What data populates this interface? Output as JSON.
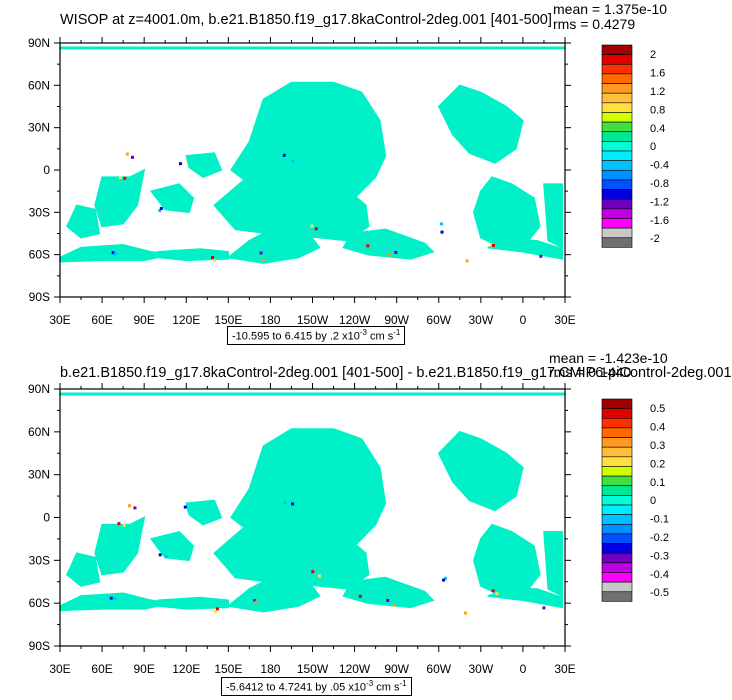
{
  "panels": [
    {
      "title": "WISOP at z=4001.0m, b.e21.B1850.f19_g17.8kaControl-2deg.001 [401-500]",
      "mean": "mean = 1.375e-10",
      "rms": "rms = 0.4279",
      "info_text": "-10.595 to 6.415 by .2 x10",
      "info_exp": "-3",
      "info_units": " cm s",
      "info_exp2": "-1",
      "lat_labels": [
        "90N",
        "60N",
        "30N",
        "0",
        "30S",
        "60S",
        "90S"
      ],
      "lon_labels": [
        "30E",
        "60E",
        "90E",
        "120E",
        "150E",
        "180",
        "150W",
        "120W",
        "90W",
        "60W",
        "30W",
        "0",
        "30E"
      ],
      "colorbar_labels": [
        "2",
        "1.6",
        "1.2",
        "0.8",
        "0.4",
        "0",
        "-0.4",
        "-0.8",
        "-1.2",
        "-1.6",
        "-2"
      ]
    },
    {
      "title": "b.e21.B1850.f19_g17.8kaControl-2deg.001 [401-500] - b.e21.B1850.f19_g17.CMIP6-piControl-2deg.001",
      "mean": "mean = -1.423e-10",
      "rms": "rms = 0.1440",
      "info_text": "-5.6412 to 4.7241 by .05 x10",
      "info_exp": "-3",
      "info_units": " cm s",
      "info_exp2": "-1",
      "lat_labels": [
        "90N",
        "60N",
        "30N",
        "0",
        "30S",
        "60S",
        "90S"
      ],
      "lon_labels": [
        "30E",
        "60E",
        "90E",
        "120E",
        "150E",
        "180",
        "150W",
        "120W",
        "90W",
        "60W",
        "30W",
        "0",
        "30E"
      ],
      "colorbar_labels": [
        "0.5",
        "0.4",
        "0.3",
        "0.2",
        "0.1",
        "0",
        "-0.1",
        "-0.2",
        "-0.3",
        "-0.4",
        "-0.5"
      ]
    }
  ],
  "colors": {
    "palette": [
      "#a00000",
      "#e00000",
      "#ff3000",
      "#ff6a00",
      "#ff9a20",
      "#ffbe3a",
      "#ffe040",
      "#d0ff00",
      "#40e040",
      "#00e896",
      "#00ffd8",
      "#00ecff",
      "#00c0ff",
      "#0090ff",
      "#0050ff",
      "#0000e0",
      "#7000c0",
      "#c000e0",
      "#ff00ff",
      "#c8c8c8",
      "#707070"
    ],
    "ocean": "#00f0c8",
    "land": "#ffffff"
  },
  "chart_data": [
    {
      "type": "heatmap",
      "title": "WISOP at z=4001.0m, b.e21.B1850.f19_g17.8kaControl-2deg.001 [401-500]",
      "x_axis": "longitude",
      "x_ticks": [
        "30E",
        "60E",
        "90E",
        "120E",
        "150E",
        "180",
        "150W",
        "120W",
        "90W",
        "60W",
        "30W",
        "0",
        "30E"
      ],
      "y_axis": "latitude",
      "y_ticks": [
        "90N",
        "60N",
        "30N",
        "0",
        "30S",
        "60S",
        "90S"
      ],
      "colorbar_levels": [
        2,
        1.6,
        1.2,
        0.8,
        0.4,
        0,
        -0.4,
        -0.8,
        -1.2,
        -1.6,
        -2
      ],
      "mean": 1.375e-10,
      "rms": 0.4279,
      "contour_range": [
        -10.595,
        6.415
      ],
      "contour_interval": 0.2
    },
    {
      "type": "heatmap",
      "title": "b.e21.B1850.f19_g17.8kaControl-2deg.001 [401-500] - b.e21.B1850.f19_g17.CMIP6-piControl-2deg.001",
      "x_axis": "longitude",
      "x_ticks": [
        "30E",
        "60E",
        "90E",
        "120E",
        "150E",
        "180",
        "150W",
        "120W",
        "90W",
        "60W",
        "30W",
        "0",
        "30E"
      ],
      "y_axis": "latitude",
      "y_ticks": [
        "90N",
        "60N",
        "30N",
        "0",
        "30S",
        "60S",
        "90S"
      ],
      "colorbar_levels": [
        0.5,
        0.4,
        0.3,
        0.2,
        0.1,
        0,
        -0.1,
        -0.2,
        -0.3,
        -0.4,
        -0.5
      ],
      "mean": -1.423e-10,
      "rms": 0.144,
      "contour_range": [
        -5.6412,
        4.7241
      ],
      "contour_interval": 0.05
    }
  ]
}
